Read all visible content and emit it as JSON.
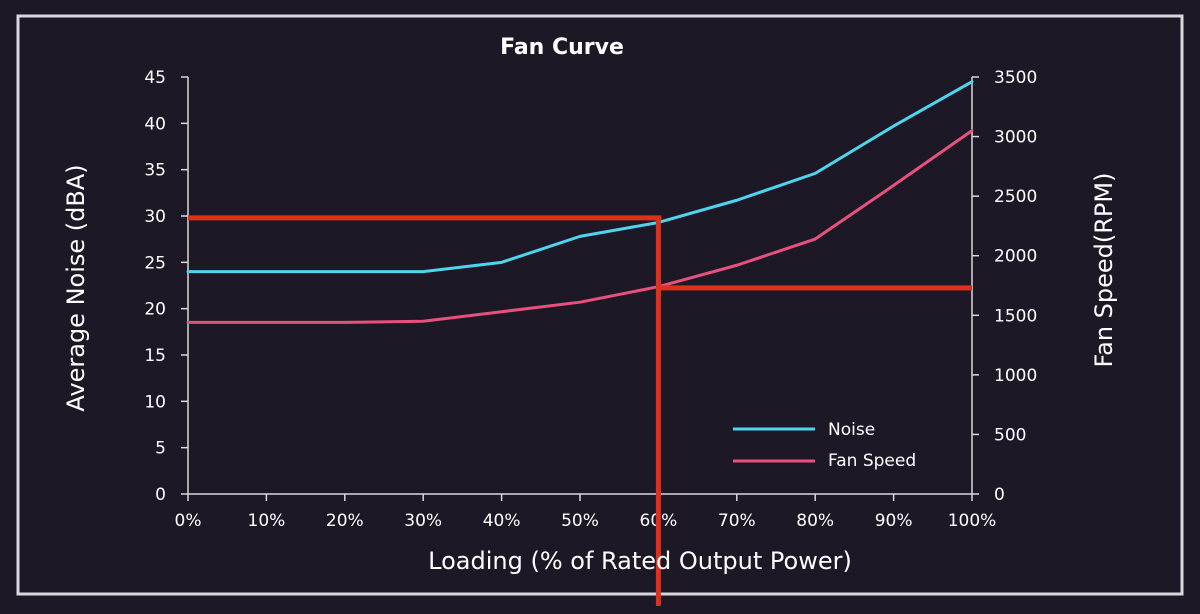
{
  "colors": {
    "background": "#1c1826",
    "frame": "#d8d8dc",
    "noise": "#4fd4ee",
    "fan_speed": "#e8507e",
    "annotation": "#e0301c"
  },
  "chart_data": {
    "type": "line",
    "title": "Fan Curve",
    "xlabel": "Loading (% of Rated Output Power)",
    "ylabel": "Average Noise (dBA)",
    "y2label": "Fan Speed(RPM)",
    "x": [
      0,
      10,
      20,
      30,
      40,
      50,
      60,
      70,
      80,
      90,
      100
    ],
    "x_tick_labels": [
      "0%",
      "10%",
      "20%",
      "30%",
      "40%",
      "50%",
      "60%",
      "70%",
      "80%",
      "90%",
      "100%"
    ],
    "y_ticks": [
      "0",
      "5",
      "10",
      "15",
      "20",
      "25",
      "30",
      "35",
      "40",
      "45"
    ],
    "y2_ticks": [
      "0",
      "500",
      "1000",
      "1500",
      "2000",
      "2500",
      "3000",
      "3500"
    ],
    "xlim": [
      0,
      100
    ],
    "ylim": [
      0,
      45
    ],
    "y2lim": [
      0,
      3500
    ],
    "grid": false,
    "legend_position": "bottom-right",
    "series": [
      {
        "name": "Noise",
        "axis": "left",
        "x": [
          0,
          10,
          20,
          30,
          40,
          50,
          60,
          70,
          80,
          90,
          100
        ],
        "values": [
          24,
          24,
          24,
          24,
          25,
          27.8,
          29.3,
          31.7,
          34.6,
          39.7,
          44.5
        ]
      },
      {
        "name": "Fan Speed",
        "axis": "right",
        "x": [
          0,
          10,
          20,
          30,
          40,
          50,
          60,
          70,
          80,
          90,
          100
        ],
        "values": [
          1440,
          1440,
          1440,
          1450,
          1530,
          1610,
          1740,
          1920,
          2140,
          2590,
          3050
        ]
      }
    ],
    "annotations": {
      "horizontal_left": {
        "x_from": 0,
        "x_to": 60,
        "y": 29.8
      },
      "vertical": {
        "x": 60,
        "y_from": 0,
        "y_to": 29.8
      },
      "horizontal_right": {
        "x_from": 60,
        "x_to": 100,
        "y2": 1730
      }
    }
  }
}
